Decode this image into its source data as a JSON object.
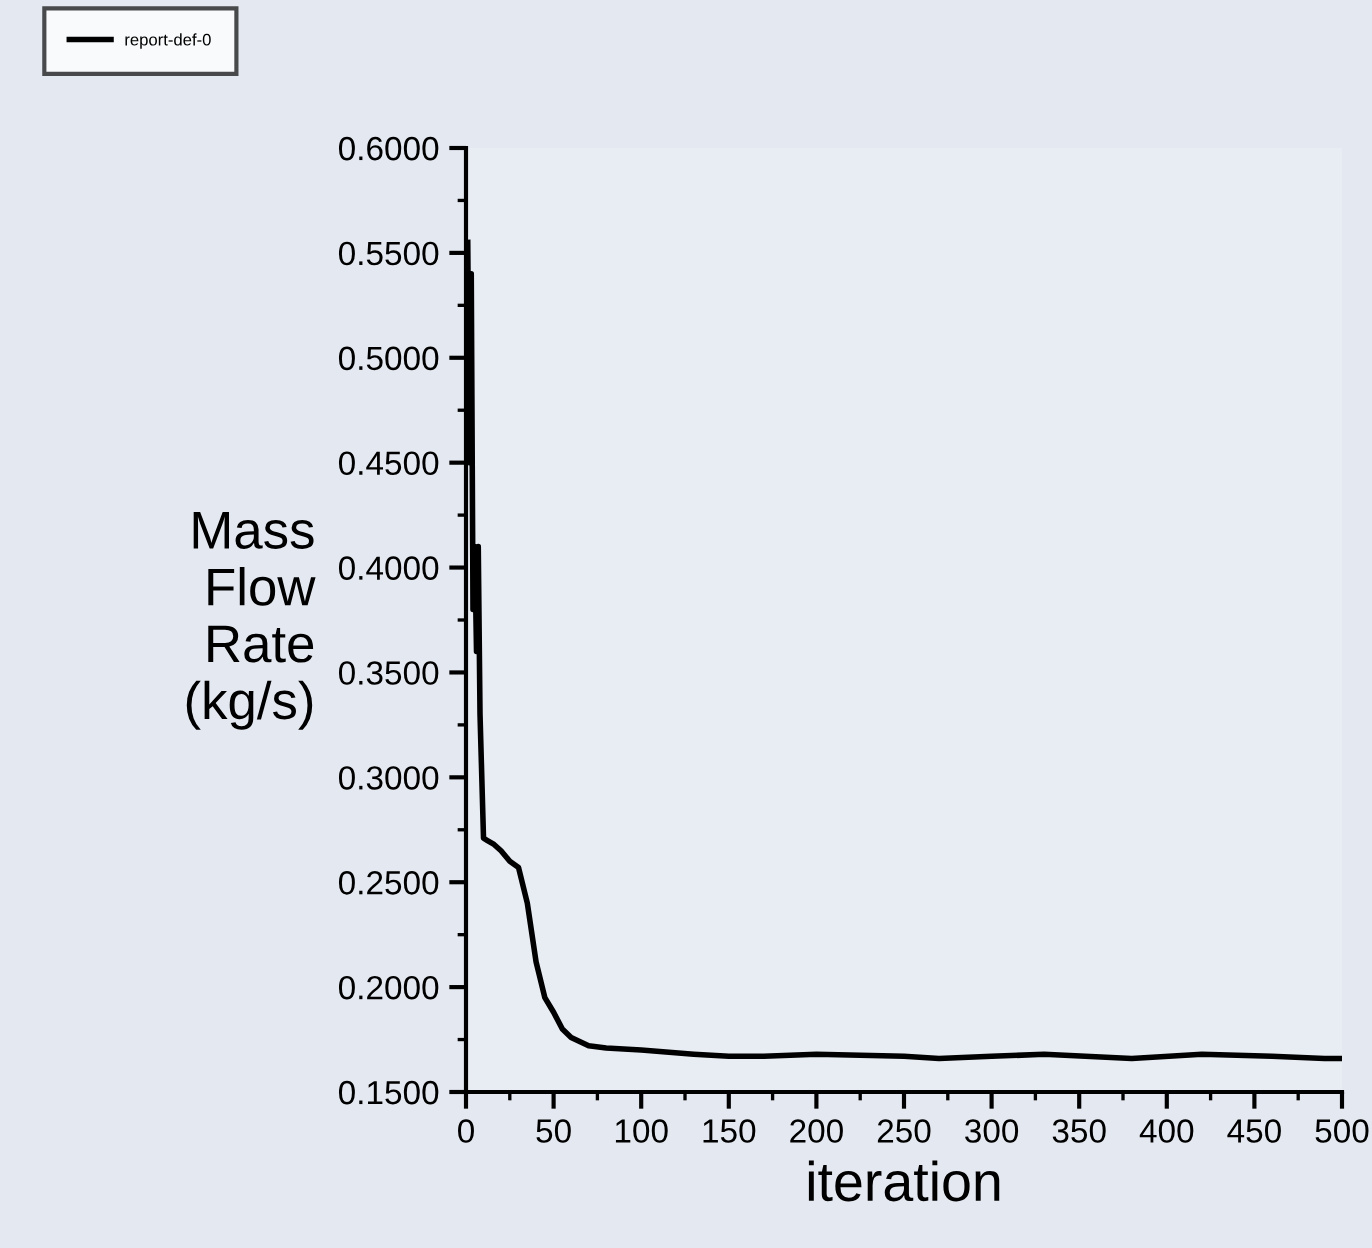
{
  "chart_data": {
    "type": "line",
    "xlabel": "iteration",
    "ylabel": "Mass\nFlow\nRate\n(kg/s)",
    "series": [
      {
        "name": "report-def-0",
        "color": "#000000",
        "x": [
          1,
          2,
          3,
          4,
          5,
          6,
          7,
          8,
          10,
          12,
          16,
          20,
          25,
          30,
          35,
          40,
          45,
          50,
          55,
          60,
          70,
          80,
          100,
          130,
          150,
          170,
          200,
          250,
          270,
          300,
          330,
          380,
          420,
          460,
          490,
          500
        ],
        "values": [
          0.555,
          0.45,
          0.54,
          0.38,
          0.41,
          0.36,
          0.41,
          0.33,
          0.271,
          0.27,
          0.268,
          0.265,
          0.26,
          0.257,
          0.24,
          0.212,
          0.195,
          0.188,
          0.18,
          0.176,
          0.172,
          0.171,
          0.17,
          0.168,
          0.167,
          0.167,
          0.168,
          0.167,
          0.166,
          0.167,
          0.168,
          0.166,
          0.168,
          0.167,
          0.166,
          0.166
        ]
      }
    ],
    "xlim": [
      0,
      500
    ],
    "xticks": [
      0,
      50,
      100,
      150,
      200,
      250,
      300,
      350,
      400,
      450,
      500
    ],
    "ylim": [
      0.15,
      0.6
    ],
    "yticks": [
      {
        "value": 0.15,
        "label": "0.1500"
      },
      {
        "value": 0.2,
        "label": "0.2000"
      },
      {
        "value": 0.25,
        "label": "0.2500"
      },
      {
        "value": 0.3,
        "label": "0.3000"
      },
      {
        "value": 0.35,
        "label": "0.3500"
      },
      {
        "value": 0.4,
        "label": "0.4000"
      },
      {
        "value": 0.45,
        "label": "0.4500"
      },
      {
        "value": 0.5,
        "label": "0.5000"
      },
      {
        "value": 0.55,
        "label": "0.5500"
      },
      {
        "value": 0.6,
        "label": "0.6000"
      }
    ],
    "grid": false,
    "legend": "top left",
    "marker": "none",
    "line_style": "solid"
  }
}
